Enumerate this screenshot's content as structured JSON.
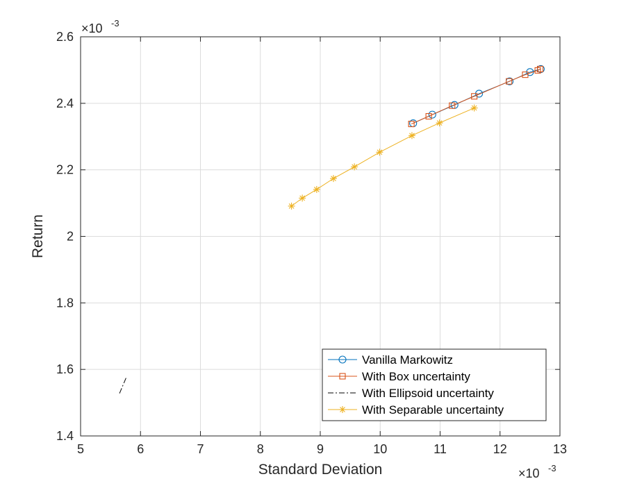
{
  "chart_data": {
    "type": "line",
    "xlabel": "Standard Deviation",
    "ylabel": "Return",
    "x_multiplier": "×10",
    "x_exponent": "-3",
    "y_multiplier": "×10",
    "y_exponent": "-3",
    "xlim": [
      5,
      13
    ],
    "ylim": [
      1.4,
      2.6
    ],
    "xticks": [
      5,
      6,
      7,
      8,
      9,
      10,
      11,
      12,
      13
    ],
    "yticks": [
      1.4,
      1.6,
      1.8,
      2,
      2.2,
      2.4,
      2.6
    ],
    "xtick_labels": [
      "5",
      "6",
      "7",
      "8",
      "9",
      "10",
      "11",
      "12",
      "13"
    ],
    "ytick_labels": [
      "1.4",
      "1.6",
      "1.8",
      "2",
      "2.2",
      "2.4",
      "2.6"
    ],
    "grid": true,
    "legend_position": "bottom-right",
    "series": [
      {
        "name": "Vanilla Markowitz",
        "color": "#0072BD",
        "marker": "circle",
        "line": "solid",
        "x": [
          10.55,
          10.87,
          11.24,
          11.65,
          12.16,
          12.5,
          12.68
        ],
        "y": [
          2.34,
          2.366,
          2.395,
          2.429,
          2.466,
          2.494,
          2.503
        ]
      },
      {
        "name": "With Box uncertainty",
        "color": "#D95319",
        "marker": "square",
        "line": "solid",
        "x": [
          10.52,
          10.81,
          11.2,
          11.57,
          12.15,
          12.42,
          12.63,
          12.67
        ],
        "y": [
          2.338,
          2.361,
          2.393,
          2.421,
          2.466,
          2.486,
          2.499,
          2.503
        ]
      },
      {
        "name": "With Ellipsoid uncertainty",
        "color": "#000000",
        "marker": "none",
        "line": "dash-dot",
        "x": [
          5.65,
          5.76
        ],
        "y": [
          1.528,
          1.575
        ]
      },
      {
        "name": "With Separable uncertainty",
        "color": "#EDB120",
        "marker": "asterisk",
        "line": "solid",
        "x": [
          8.52,
          8.7,
          8.94,
          9.22,
          9.57,
          9.99,
          10.53,
          10.99,
          11.57
        ],
        "y": [
          2.091,
          2.115,
          2.141,
          2.174,
          2.209,
          2.253,
          2.303,
          2.341,
          2.386
        ]
      }
    ]
  }
}
